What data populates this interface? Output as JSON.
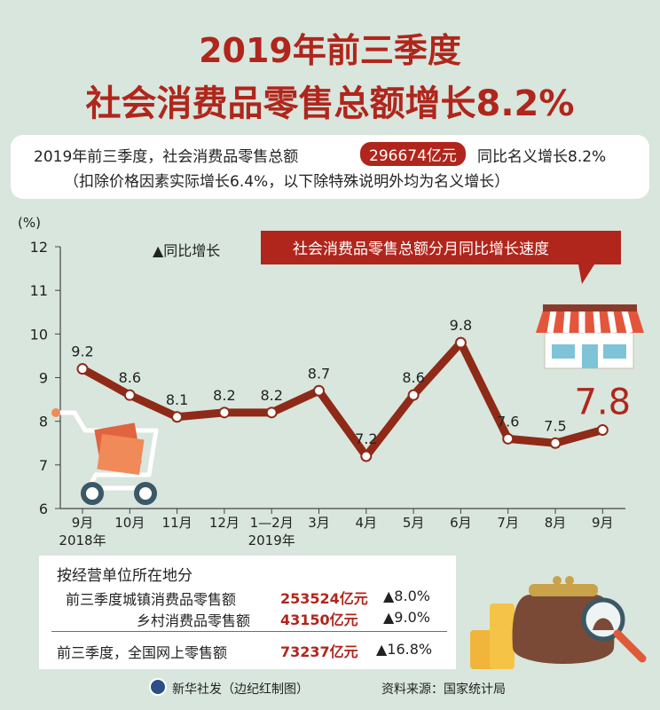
{
  "title_line1": "2019年前三季度",
  "title_line2": "社会消费品零售总额增长8.2%",
  "summary": {
    "line1_a": "2019年前三季度，社会消费品零售总额",
    "line1_highlight": "296674亿元",
    "line1_b": "同比名义增长8.2%",
    "line2": "（扣除价格因素实际增长6.4%，以下除特殊说明外均为名义增长）"
  },
  "chart_data": {
    "type": "line",
    "title": "社会消费品零售总额分月同比增长速度",
    "y_unit": "(%)",
    "legend": "▲同比增长",
    "categories": [
      "9月",
      "10月",
      "11月",
      "12月",
      "1—2月",
      "3月",
      "4月",
      "5月",
      "6月",
      "7月",
      "8月",
      "9月"
    ],
    "year_labels": [
      {
        "at": 0,
        "text": "2018年"
      },
      {
        "at": 4,
        "text": "2019年"
      }
    ],
    "values": [
      9.2,
      8.6,
      8.1,
      8.2,
      8.2,
      8.7,
      7.2,
      8.6,
      9.8,
      7.6,
      7.5,
      7.8
    ],
    "value_labels": [
      "9.2",
      "8.6",
      "8.1",
      "8.2",
      "8.2",
      "8.7",
      "7.2",
      "8.6",
      "9.8",
      "7.6",
      "7.5",
      "7.8"
    ],
    "ylim": [
      6,
      12
    ],
    "yticks": [
      "6",
      "7",
      "8",
      "9",
      "10",
      "11",
      "12"
    ],
    "line_color": "#8f2a18",
    "highlight_color": "#b0261c",
    "grid": false
  },
  "bottom": {
    "heading": "按经营单位所在地分",
    "urban_label": "前三季度城镇消费品零售额",
    "urban_value": "253524亿元",
    "urban_growth": "▲8.0%",
    "rural_label": "乡村消费品零售额",
    "rural_value": "43150亿元",
    "rural_growth": "▲9.0%",
    "online_label": "前三季度，全国网上零售额",
    "online_value": "73237亿元",
    "online_growth": "▲16.8%"
  },
  "footer": {
    "credit": "新华社发（边纪红制图）",
    "source": "资料来源：国家统计局"
  },
  "colors": {
    "background": "#d8e6dd",
    "accent": "#b0261c"
  }
}
